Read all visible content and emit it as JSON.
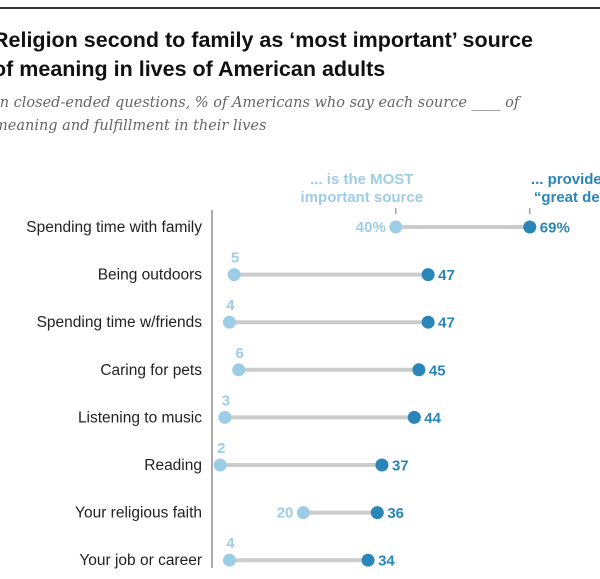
{
  "chart_data": {
    "type": "dot",
    "title": "Religion second to family as ‘most important’ source of meaning in lives of American adults",
    "title_lines": [
      "Religion second to family as ‘most important’ source",
      "of meaning in lives of American adults"
    ],
    "subtitle_lines": [
      "In closed-ended questions, % of Americans who say each source ____ of",
      "meaning and fulfillment in their lives"
    ],
    "categories": [
      "Spending time with family",
      "Being outdoors",
      "Spending time w/friends",
      "Caring for pets",
      "Listening to music",
      "Reading",
      "Your religious faith",
      "Your job or career"
    ],
    "series": [
      {
        "name": "... is the MOST important source",
        "name_lines": [
          "... is the MOST",
          "important source"
        ],
        "color": "#9dcde6",
        "values": [
          40,
          5,
          4,
          6,
          3,
          2,
          20,
          4
        ]
      },
      {
        "name": "... provides a “great deal”",
        "name_lines": [
          "... provides a",
          "“great deal”"
        ],
        "color": "#2a85b8",
        "values": [
          69,
          47,
          47,
          45,
          44,
          37,
          36,
          34
        ]
      }
    ],
    "first_row_suffix": "%",
    "xlim": [
      0,
      80
    ],
    "connector_color": "#cccccc",
    "grid": false
  }
}
